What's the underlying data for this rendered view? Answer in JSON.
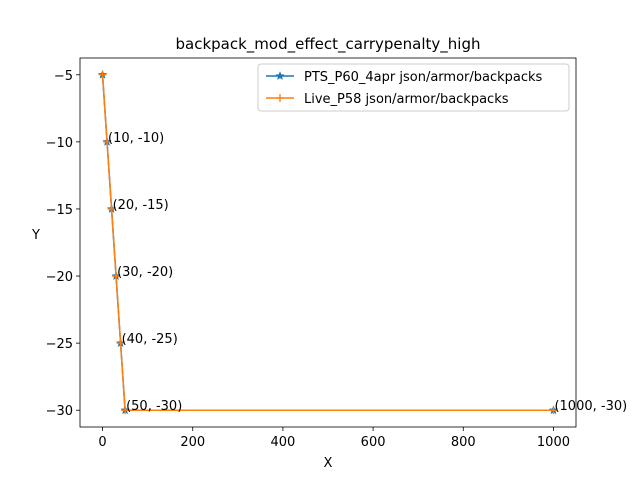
{
  "chart_data": {
    "type": "line",
    "title": "backpack_mod_effect_carrypenalty_high",
    "xlabel": "X",
    "ylabel": "Y",
    "xlim": [
      -50,
      1050
    ],
    "ylim": [
      -31.25,
      -3.75
    ],
    "xticks": [
      0,
      200,
      400,
      600,
      800,
      1000
    ],
    "yticks": [
      -5,
      -10,
      -15,
      -20,
      -25,
      -30
    ],
    "grid": false,
    "legend_position": "upper right",
    "series": [
      {
        "name": "PTS_P60_4apr json/armor/backpacks",
        "color": "#1f77b4",
        "marker": "star",
        "x": [
          0,
          10,
          20,
          30,
          40,
          50,
          1000
        ],
        "y": [
          -5,
          -10,
          -15,
          -20,
          -25,
          -30,
          -30
        ]
      },
      {
        "name": "Live_P58 json/armor/backpacks",
        "color": "#ff7f0e",
        "marker": "plus",
        "x": [
          0,
          10,
          20,
          30,
          40,
          50,
          1000
        ],
        "y": [
          -5,
          -10,
          -15,
          -20,
          -25,
          -30,
          -30
        ]
      }
    ],
    "annotations": [
      {
        "text": "(10, -10)",
        "x": 10,
        "y": -10
      },
      {
        "text": "(20, -15)",
        "x": 20,
        "y": -15
      },
      {
        "text": "(30, -20)",
        "x": 30,
        "y": -20
      },
      {
        "text": "(40, -25)",
        "x": 40,
        "y": -25
      },
      {
        "text": "(50, -30)",
        "x": 50,
        "y": -30
      },
      {
        "text": "(1000, -30)",
        "x": 1000,
        "y": -30
      }
    ]
  }
}
